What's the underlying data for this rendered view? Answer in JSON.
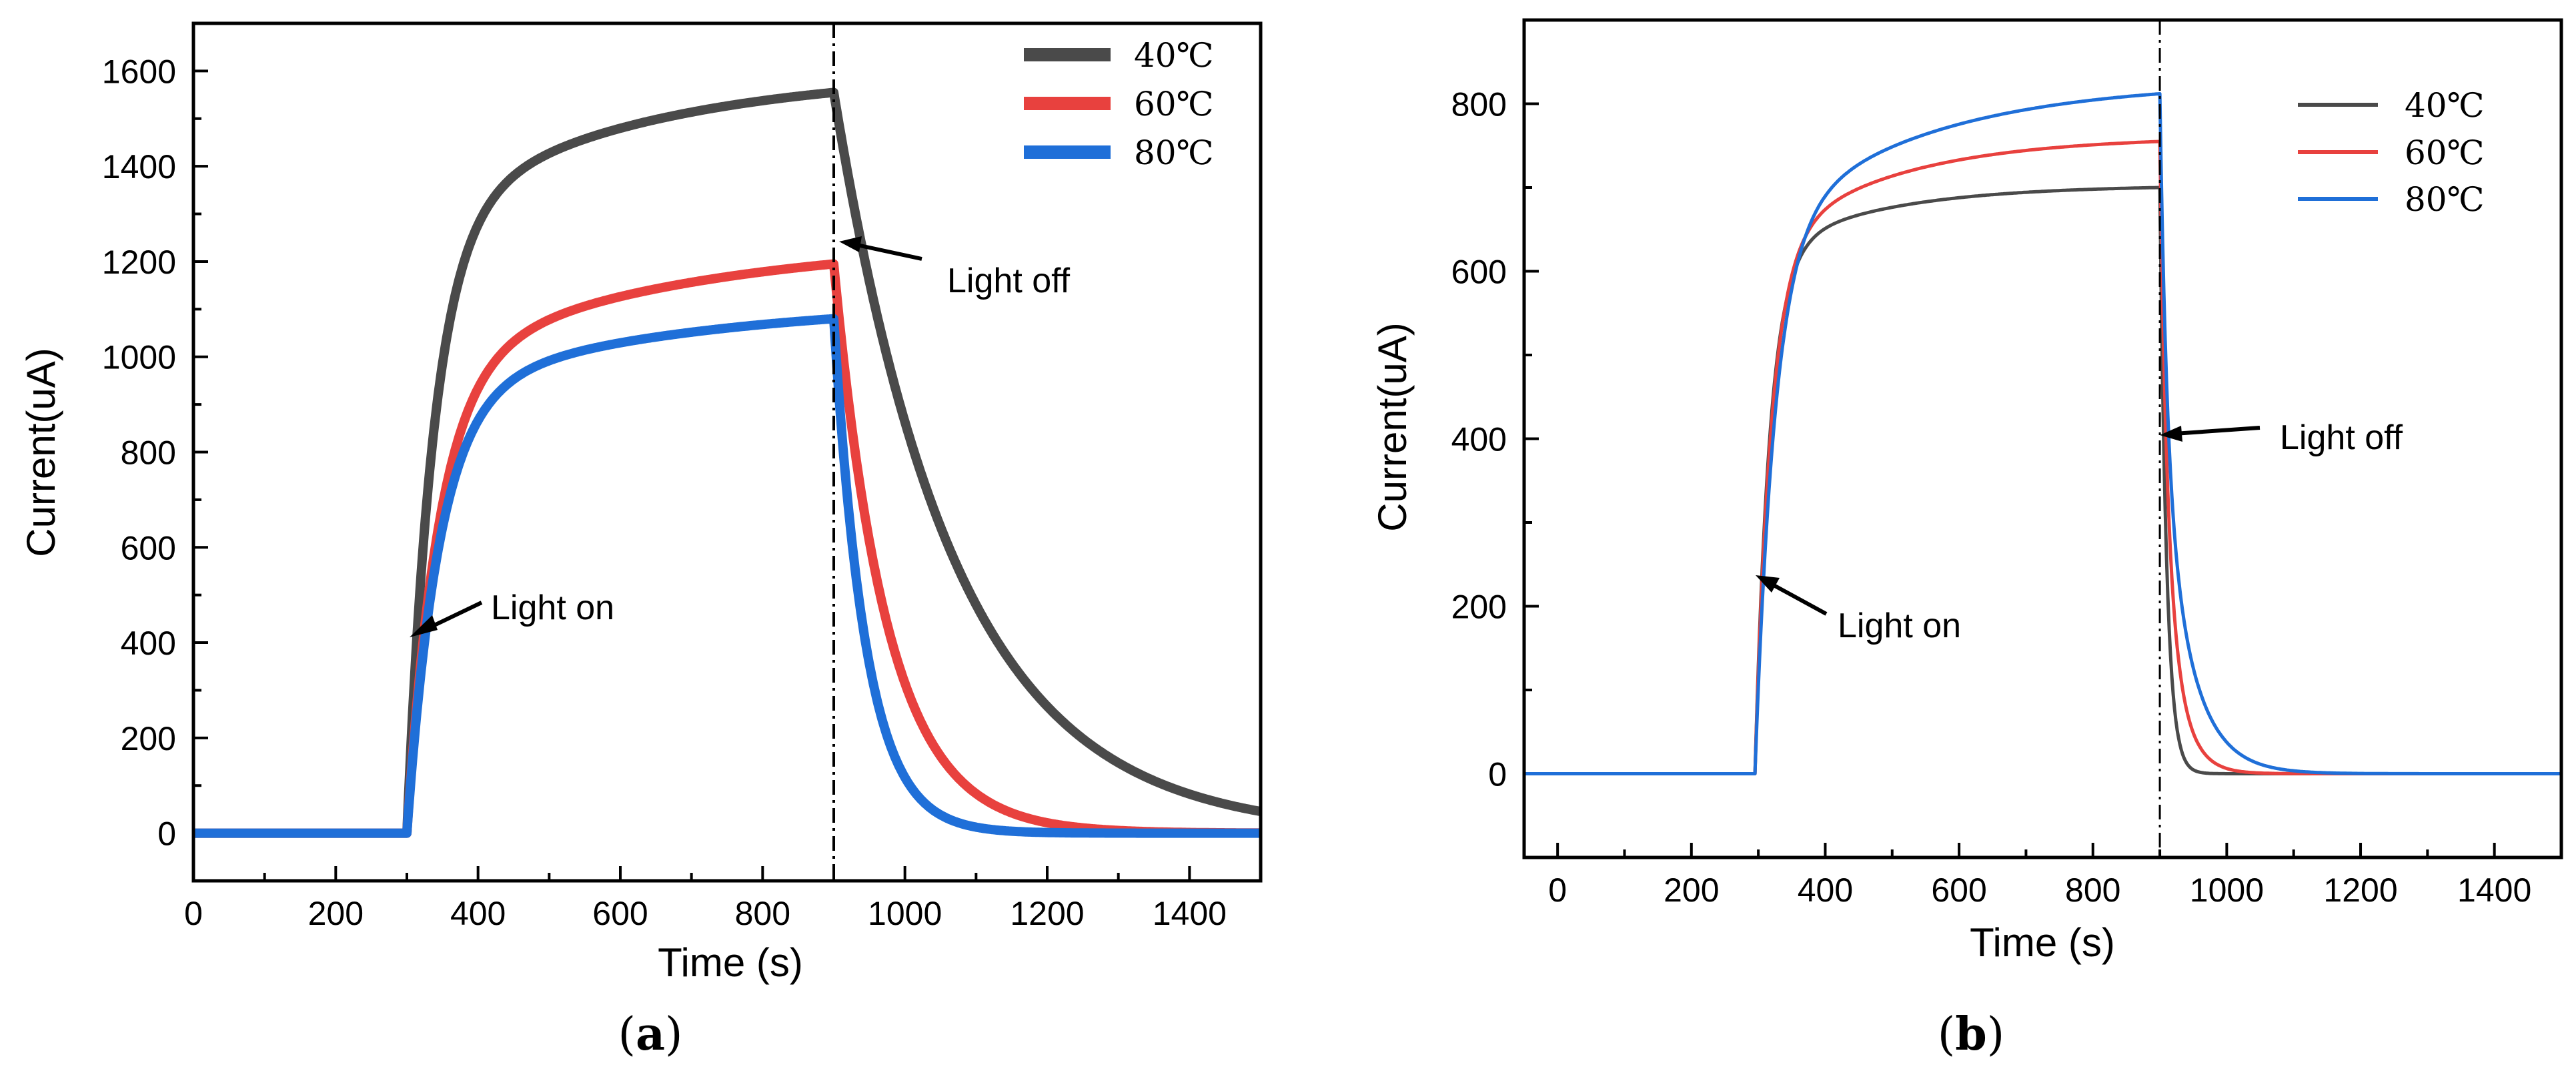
{
  "chart_data": [
    {
      "type": "line",
      "panel": "a",
      "caption_open": "(",
      "caption_letter": "a",
      "caption_close": ")",
      "xlabel": "Time (s)",
      "ylabel": "Current(uA)",
      "xlim": [
        0,
        1500
      ],
      "ylim": [
        -100,
        1700
      ],
      "xticks": [
        0,
        200,
        400,
        600,
        800,
        1000,
        1200,
        1400
      ],
      "yticks": [
        0,
        200,
        400,
        600,
        800,
        1000,
        1200,
        1400,
        1600
      ],
      "grid": false,
      "legend_position": "top-right",
      "light_on_time": 300,
      "light_off_time": 900,
      "series": [
        {
          "name": "40℃",
          "color": "#4a4a4a",
          "on_level": 1555,
          "tau_rise": 38,
          "tau_fall": 170,
          "off_shape": "single",
          "rise_frac": 0.8,
          "fast_frac": 0.25,
          "tau_fast": 12
        },
        {
          "name": "60℃",
          "color": "#e8413e",
          "on_level": 1195,
          "tau_rise": 45,
          "tau_fall": 75,
          "off_shape": "single",
          "rise_frac": 0.78,
          "fast_frac": 0.5,
          "tau_fast": 12
        },
        {
          "name": "80℃",
          "color": "#1f6fd8",
          "on_level": 1080,
          "tau_rise": 45,
          "tau_fall": 45,
          "off_shape": "single",
          "rise_frac": 0.82,
          "fast_frac": 0.5,
          "tau_fast": 12
        }
      ],
      "annotations": [
        {
          "text": "Light on",
          "x": 305,
          "y": 405
        },
        {
          "text": "Light off",
          "x": 905,
          "y": 1240
        }
      ]
    },
    {
      "type": "line",
      "panel": "b",
      "caption_open": "(",
      "caption_letter": "b",
      "caption_close": ")",
      "xlabel": "Time (s)",
      "ylabel": "Current(uA)",
      "xlim": [
        -50,
        1500
      ],
      "ylim": [
        -100,
        900
      ],
      "xticks": [
        0,
        200,
        400,
        600,
        800,
        1000,
        1200,
        1400
      ],
      "yticks": [
        0,
        200,
        400,
        600,
        800
      ],
      "grid": false,
      "legend_position": "top-right",
      "light_on_time": 295,
      "light_off_time": 900,
      "series": [
        {
          "name": "40℃",
          "color": "#4a4a4a",
          "on_level": 700,
          "tau_rise": 22,
          "tau_fall": 10,
          "off_shape": "single",
          "rise_frac": 0.88,
          "fast_frac": 0.5,
          "tau_fast": 10
        },
        {
          "name": "60℃",
          "color": "#e8413e",
          "on_level": 755,
          "tau_rise": 24,
          "tau_fall": 25,
          "off_shape": "double",
          "rise_frac": 0.82,
          "fast_frac": 0.55,
          "tau_fast": 10
        },
        {
          "name": "80℃",
          "color": "#1f6fd8",
          "on_level": 812,
          "tau_rise": 30,
          "tau_fall": 42,
          "off_shape": "double",
          "rise_frac": 0.78,
          "fast_frac": 0.5,
          "tau_fast": 10
        }
      ],
      "annotations": [
        {
          "text": "Light on",
          "x": 300,
          "y": 235
        },
        {
          "text": "Light off",
          "x": 903,
          "y": 402
        }
      ]
    }
  ]
}
